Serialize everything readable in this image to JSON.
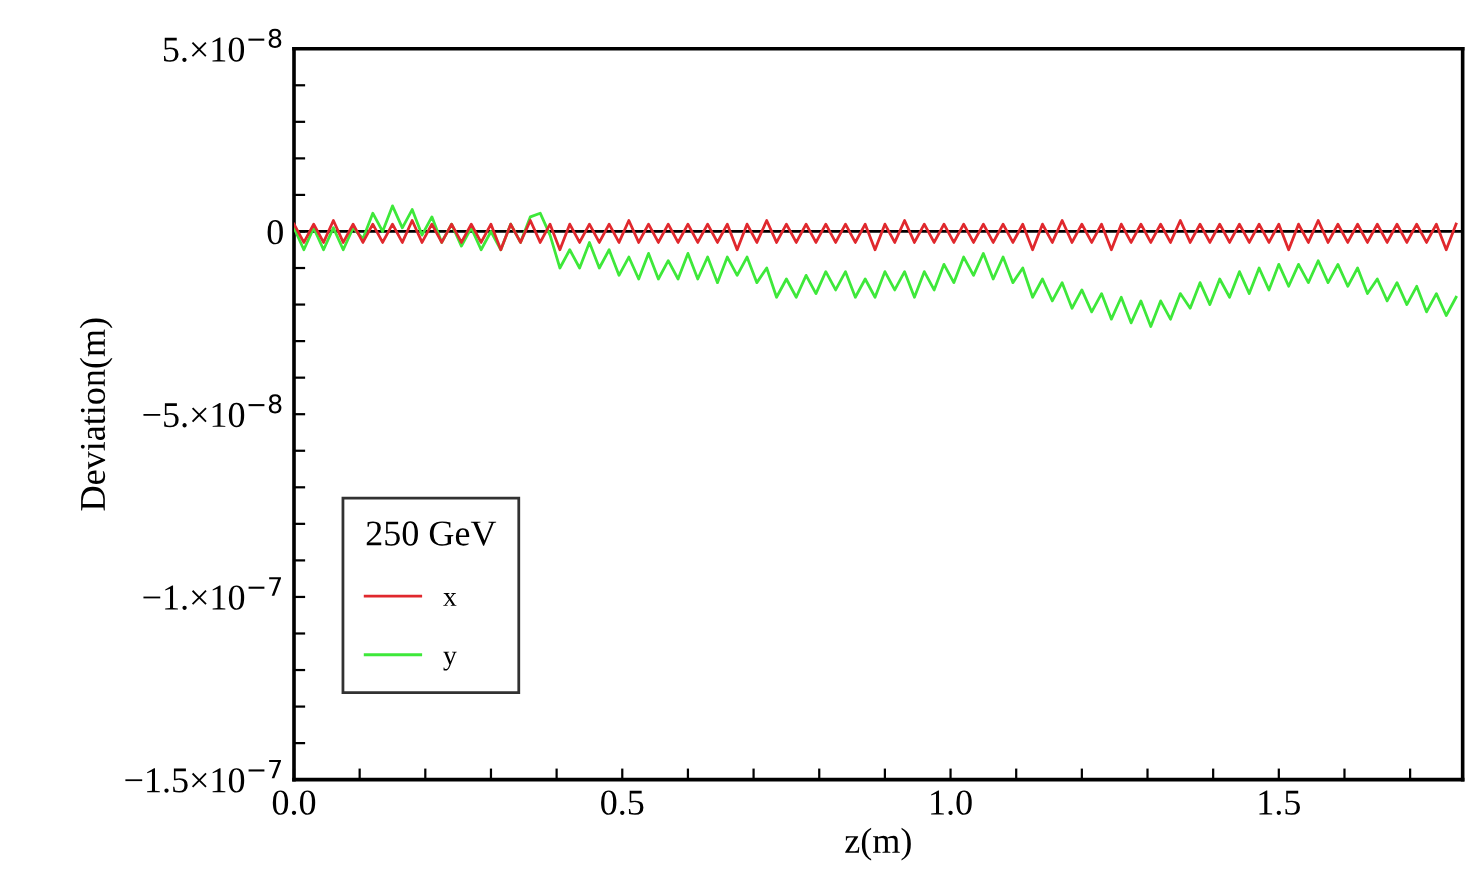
{
  "chart_data": {
    "type": "line",
    "xlabel": "z(m)",
    "ylabel": "Deviation(m)",
    "legend_title": "250 GeV",
    "legend": "bottom left",
    "grid": false,
    "marker": "none",
    "line_style": "solid",
    "xlim": [
      0,
      1.78
    ],
    "ylim": [
      -1.5e-07,
      5e-08
    ],
    "xticks": [
      {
        "value": 0,
        "label": "0.0"
      },
      {
        "value": 0.1,
        "label": null
      },
      {
        "value": 0.2,
        "label": null
      },
      {
        "value": 0.3,
        "label": null
      },
      {
        "value": 0.4,
        "label": null
      },
      {
        "value": 0.5,
        "label": "0.5"
      },
      {
        "value": 0.6,
        "label": null
      },
      {
        "value": 0.7,
        "label": null
      },
      {
        "value": 0.8,
        "label": null
      },
      {
        "value": 0.9,
        "label": null
      },
      {
        "value": 1.0,
        "label": "1.0"
      },
      {
        "value": 1.1,
        "label": null
      },
      {
        "value": 1.2,
        "label": null
      },
      {
        "value": 1.3,
        "label": null
      },
      {
        "value": 1.4,
        "label": null
      },
      {
        "value": 1.5,
        "label": "1.5"
      },
      {
        "value": 1.6,
        "label": null
      },
      {
        "value": 1.7,
        "label": null
      }
    ],
    "yticks": [
      {
        "value": 5e-08,
        "label": "5.×10$^{−8}$"
      },
      {
        "value": 4e-08,
        "label": null
      },
      {
        "value": 3e-08,
        "label": null
      },
      {
        "value": 2e-08,
        "label": null
      },
      {
        "value": 1e-08,
        "label": null
      },
      {
        "value": 0,
        "label": "0"
      },
      {
        "value": -1e-08,
        "label": null
      },
      {
        "value": -2e-08,
        "label": null
      },
      {
        "value": -3e-08,
        "label": null
      },
      {
        "value": -4e-08,
        "label": null
      },
      {
        "value": -5e-08,
        "label": "−5.×10$^{−8}$"
      },
      {
        "value": -6e-08,
        "label": null
      },
      {
        "value": -7e-08,
        "label": null
      },
      {
        "value": -8e-08,
        "label": null
      },
      {
        "value": -9e-08,
        "label": null
      },
      {
        "value": -1e-07,
        "label": "−1.×10$^{−7}$"
      },
      {
        "value": -1.1e-07,
        "label": null
      },
      {
        "value": -1.2e-07,
        "label": null
      },
      {
        "value": -1.3e-07,
        "label": null
      },
      {
        "value": -1.4e-07,
        "label": null
      },
      {
        "value": -1.5e-07,
        "label": "−1.5×10$^{−7}$"
      }
    ],
    "ref_lines": [
      {
        "axis": "y",
        "value": 0,
        "color": "#000000",
        "line_style": "solid"
      }
    ],
    "x": [
      0,
      0.015,
      0.03,
      0.045,
      0.06,
      0.075,
      0.09,
      0.105,
      0.12,
      0.135,
      0.15,
      0.165,
      0.18,
      0.195,
      0.21,
      0.225,
      0.24,
      0.255,
      0.27,
      0.285,
      0.3,
      0.315,
      0.33,
      0.345,
      0.36,
      0.375,
      0.39,
      0.405,
      0.42,
      0.435,
      0.45,
      0.465,
      0.48,
      0.495,
      0.51,
      0.525,
      0.54,
      0.555,
      0.57,
      0.585,
      0.6,
      0.615,
      0.63,
      0.645,
      0.66,
      0.675,
      0.69,
      0.705,
      0.72,
      0.735,
      0.75,
      0.765,
      0.78,
      0.795,
      0.81,
      0.825,
      0.84,
      0.855,
      0.87,
      0.885,
      0.9,
      0.915,
      0.93,
      0.945,
      0.96,
      0.975,
      0.99,
      1.005,
      1.02,
      1.035,
      1.05,
      1.065,
      1.08,
      1.095,
      1.11,
      1.125,
      1.14,
      1.155,
      1.17,
      1.185,
      1.2,
      1.215,
      1.23,
      1.245,
      1.26,
      1.275,
      1.29,
      1.305,
      1.32,
      1.335,
      1.35,
      1.365,
      1.38,
      1.395,
      1.41,
      1.425,
      1.44,
      1.455,
      1.47,
      1.485,
      1.5,
      1.515,
      1.53,
      1.545,
      1.56,
      1.575,
      1.59,
      1.605,
      1.62,
      1.635,
      1.65,
      1.665,
      1.68,
      1.695,
      1.71,
      1.725,
      1.74,
      1.755,
      1.77
    ],
    "series": [
      {
        "name": "x",
        "color": "#e0282d",
        "values": [
          2e-09,
          -3e-09,
          2e-09,
          -3e-09,
          3e-09,
          -3e-09,
          2e-09,
          -3e-09,
          2e-09,
          -3e-09,
          2e-09,
          -3e-09,
          3e-09,
          -3e-09,
          2e-09,
          -3e-09,
          2e-09,
          -3e-09,
          2e-09,
          -3e-09,
          2e-09,
          -5e-09,
          2e-09,
          -3e-09,
          3e-09,
          -3e-09,
          2e-09,
          -5e-09,
          2e-09,
          -3e-09,
          2e-09,
          -3e-09,
          2e-09,
          -3e-09,
          3e-09,
          -3e-09,
          2e-09,
          -3e-09,
          2e-09,
          -3e-09,
          2e-09,
          -3e-09,
          2e-09,
          -3e-09,
          2e-09,
          -5e-09,
          2e-09,
          -3e-09,
          3e-09,
          -3e-09,
          2e-09,
          -3e-09,
          2e-09,
          -3e-09,
          2e-09,
          -3e-09,
          2e-09,
          -3e-09,
          2e-09,
          -5e-09,
          2e-09,
          -3e-09,
          3e-09,
          -3e-09,
          2e-09,
          -3e-09,
          2e-09,
          -3e-09,
          2e-09,
          -3e-09,
          2e-09,
          -3e-09,
          2e-09,
          -3e-09,
          2e-09,
          -5e-09,
          2e-09,
          -3e-09,
          3e-09,
          -3e-09,
          2e-09,
          -3e-09,
          2e-09,
          -5e-09,
          2e-09,
          -3e-09,
          2e-09,
          -3e-09,
          2e-09,
          -3e-09,
          3e-09,
          -3e-09,
          2e-09,
          -3e-09,
          2e-09,
          -3e-09,
          2e-09,
          -3e-09,
          2e-09,
          -3e-09,
          2e-09,
          -5e-09,
          2e-09,
          -3e-09,
          3e-09,
          -3e-09,
          2e-09,
          -3e-09,
          2e-09,
          -3e-09,
          2e-09,
          -3e-09,
          2e-09,
          -3e-09,
          2e-09,
          -3e-09,
          2e-09,
          -5e-09,
          2e-09
        ]
      },
      {
        "name": "y",
        "color": "#3ee83a",
        "values": [
          1e-09,
          -5e-09,
          1e-09,
          -5e-09,
          1e-09,
          -5e-09,
          1e-09,
          -2e-09,
          5e-09,
          0,
          7e-09,
          1e-09,
          6e-09,
          -1e-09,
          4e-09,
          -3e-09,
          2e-09,
          -4e-09,
          1e-09,
          -5e-09,
          0,
          -5e-09,
          2e-09,
          -3e-09,
          4e-09,
          5e-09,
          -1e-09,
          -1e-08,
          -5e-09,
          -1e-08,
          -3e-09,
          -1e-08,
          -5e-09,
          -1.2e-08,
          -7e-09,
          -1.3e-08,
          -6e-09,
          -1.3e-08,
          -8e-09,
          -1.3e-08,
          -6e-09,
          -1.3e-08,
          -7e-09,
          -1.4e-08,
          -7e-09,
          -1.2e-08,
          -7e-09,
          -1.4e-08,
          -1e-08,
          -1.8e-08,
          -1.3e-08,
          -1.8e-08,
          -1.2e-08,
          -1.7e-08,
          -1.1e-08,
          -1.6e-08,
          -1.1e-08,
          -1.8e-08,
          -1.3e-08,
          -1.8e-08,
          -1.1e-08,
          -1.6e-08,
          -1.1e-08,
          -1.8e-08,
          -1.1e-08,
          -1.6e-08,
          -9e-09,
          -1.4e-08,
          -7e-09,
          -1.2e-08,
          -6e-09,
          -1.3e-08,
          -7e-09,
          -1.4e-08,
          -1e-08,
          -1.8e-08,
          -1.3e-08,
          -1.9e-08,
          -1.4e-08,
          -2.1e-08,
          -1.6e-08,
          -2.2e-08,
          -1.7e-08,
          -2.4e-08,
          -1.8e-08,
          -2.5e-08,
          -1.9e-08,
          -2.6e-08,
          -1.9e-08,
          -2.4e-08,
          -1.7e-08,
          -2.1e-08,
          -1.4e-08,
          -2e-08,
          -1.3e-08,
          -1.8e-08,
          -1.1e-08,
          -1.7e-08,
          -1e-08,
          -1.6e-08,
          -9e-09,
          -1.5e-08,
          -9e-09,
          -1.4e-08,
          -8e-09,
          -1.4e-08,
          -9e-09,
          -1.5e-08,
          -1e-08,
          -1.7e-08,
          -1.3e-08,
          -1.9e-08,
          -1.4e-08,
          -2e-08,
          -1.5e-08,
          -2.2e-08,
          -1.7e-08,
          -2.3e-08,
          -1.8e-08
        ]
      }
    ]
  }
}
